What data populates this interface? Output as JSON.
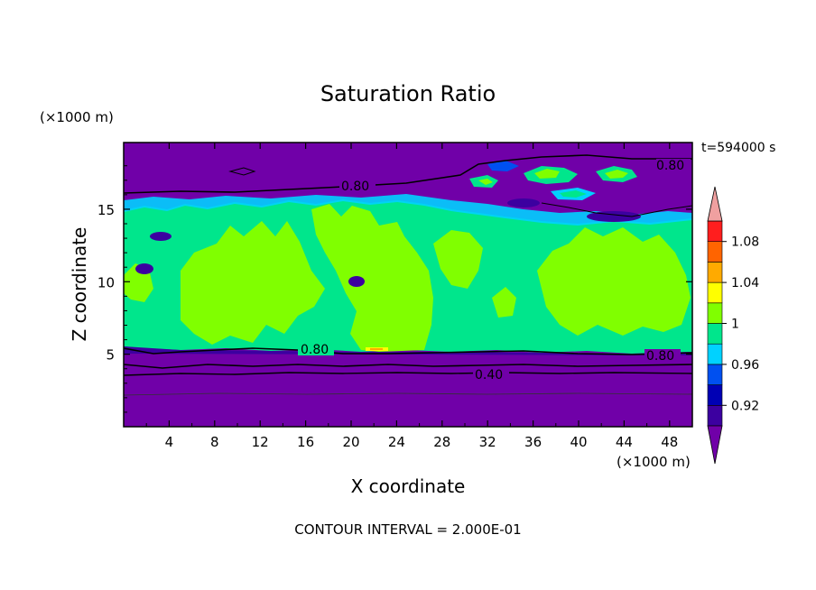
{
  "chart_data": {
    "type": "heatmap",
    "title": "Saturation Ratio",
    "time_label": "t=594000 s",
    "xlabel": "X coordinate",
    "ylabel": "Z coordinate",
    "x_unit": "(×1000 m)",
    "y_unit": "(×1000 m)",
    "xlim": [
      0,
      50
    ],
    "ylim": [
      0,
      19.6
    ],
    "x_ticks": [
      "4",
      "8",
      "12",
      "16",
      "20",
      "24",
      "28",
      "32",
      "36",
      "40",
      "44",
      "48"
    ],
    "y_ticks": [
      "5",
      "10",
      "15"
    ],
    "footer": "CONTOUR INTERVAL = 2.000E-01",
    "contour_labels": [
      "0.80",
      "0.80",
      "0.80",
      "0.80",
      "0.40"
    ],
    "colorbar": {
      "tick_labels": [
        "1.08",
        "1.04",
        "1",
        "0.96",
        "0.92"
      ],
      "levels": [
        0.9,
        0.92,
        0.94,
        0.96,
        0.98,
        1.0,
        1.02,
        1.04,
        1.06,
        1.08,
        1.1
      ],
      "colors": {
        "under": "#7000a8",
        "b1": "#3c00a0",
        "b2": "#0000b4",
        "b3": "#0050f0",
        "b4": "#00d2ff",
        "b5": "#00e68c",
        "b6": "#80ff00",
        "b7": "#ffff00",
        "b8": "#ffaa00",
        "b9": "#ff6400",
        "b10": "#ff1e1e",
        "over": "#f0a0a0"
      }
    },
    "regions": [
      {
        "name": "lower-dry-layer",
        "z_range": [
          0,
          5.3
        ],
        "band": "under"
      },
      {
        "name": "moist-layer",
        "z_range": [
          5.3,
          15.5
        ],
        "band": "b5"
      },
      {
        "name": "supersaturated-patches",
        "band": "b6"
      },
      {
        "name": "upper-dry-layer",
        "z_range": [
          15.5,
          19.6
        ],
        "band": "under"
      }
    ]
  }
}
